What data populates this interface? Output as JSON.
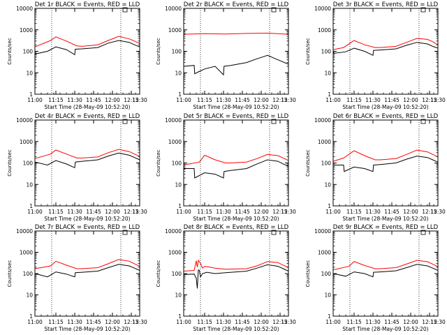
{
  "chart_data": [
    {
      "type": "line",
      "title": "Det 1r BLACK = Events, RED = LLD",
      "xlabel": "Start Time (28-May-09 10:52:20)",
      "ylabel": "Counts/sec",
      "ylog": true,
      "ylim": [
        1,
        10000
      ],
      "x_ticks": [
        "11:00",
        "11:15",
        "11:30",
        "11:45",
        "12:00",
        "12:15",
        "12:30"
      ],
      "y_ticks": [
        "1",
        "10",
        "100",
        "1000",
        "10000"
      ],
      "series": [
        {
          "name": "LLD",
          "color": "#ff0000",
          "x": [
            0,
            15,
            20,
            30,
            40,
            45,
            60,
            70,
            80,
            90,
            95,
            100
          ],
          "y": [
            160,
            320,
            470,
            300,
            180,
            170,
            200,
            320,
            500,
            380,
            300,
            230
          ]
        },
        {
          "name": "Events",
          "color": "#000000",
          "x": [
            0,
            0.5,
            12,
            20,
            30,
            38,
            38.5,
            45,
            60,
            70,
            80,
            90,
            95,
            100
          ],
          "y": [
            95,
            75,
            100,
            160,
            120,
            70,
            125,
            130,
            150,
            240,
            320,
            260,
            200,
            160
          ]
        }
      ]
    },
    {
      "type": "line",
      "title": "Det 2r BLACK = Events, RED = LLD",
      "xlabel": "Start Time (28-May-09 10:52:20)",
      "ylabel": "Counts/sec",
      "ylog": true,
      "ylim": [
        1,
        10000
      ],
      "x_ticks": [
        "11:00",
        "11:15",
        "11:30",
        "11:45",
        "12:00",
        "12:15",
        "12:30"
      ],
      "y_ticks": [
        "1",
        "10",
        "100",
        "1000",
        "10000"
      ],
      "series": [
        {
          "name": "LLD",
          "color": "#ff0000",
          "x": [
            0,
            20,
            40,
            60,
            80,
            90,
            100
          ],
          "y": [
            620,
            660,
            640,
            680,
            700,
            660,
            620
          ]
        },
        {
          "name": "Events",
          "color": "#000000",
          "x": [
            0,
            10,
            10.5,
            14,
            20,
            30,
            38,
            38.5,
            45,
            60,
            70,
            80,
            90,
            100
          ],
          "y": [
            20,
            22,
            9,
            11,
            15,
            20,
            8,
            20,
            22,
            30,
            45,
            65,
            40,
            25
          ]
        }
      ]
    },
    {
      "type": "line",
      "title": "Det 3r BLACK = Events, RED = LLD",
      "xlabel": "Start Time (28-May-09 10:52:20)",
      "ylabel": "Counts/sec",
      "ylog": true,
      "ylim": [
        1,
        10000
      ],
      "x_ticks": [
        "11:00",
        "11:15",
        "11:30",
        "11:45",
        "12:00",
        "12:15",
        "12:30"
      ],
      "y_ticks": [
        "1",
        "10",
        "100",
        "1000",
        "10000"
      ],
      "series": [
        {
          "name": "LLD",
          "color": "#ff0000",
          "x": [
            0,
            10,
            20,
            30,
            40,
            45,
            60,
            70,
            80,
            90,
            95,
            100
          ],
          "y": [
            120,
            150,
            320,
            200,
            150,
            150,
            170,
            260,
            400,
            360,
            280,
            200
          ]
        },
        {
          "name": "Events",
          "color": "#000000",
          "x": [
            0,
            0.5,
            12,
            20,
            30,
            38,
            38.5,
            45,
            60,
            70,
            80,
            90,
            95,
            100
          ],
          "y": [
            100,
            80,
            95,
            140,
            100,
            65,
            110,
            115,
            130,
            190,
            260,
            220,
            170,
            140
          ]
        }
      ]
    },
    {
      "type": "line",
      "title": "Det 4r BLACK = Events, RED = LLD",
      "xlabel": "Start Time (28-May-09 10:52:20)",
      "ylabel": "Counts/sec",
      "ylog": true,
      "ylim": [
        1,
        10000
      ],
      "x_ticks": [
        "11:00",
        "11:15",
        "11:30",
        "11:45",
        "12:00",
        "12:15",
        "12:30"
      ],
      "y_ticks": [
        "1",
        "10",
        "100",
        "1000",
        "10000"
      ],
      "series": [
        {
          "name": "LLD",
          "color": "#ff0000",
          "x": [
            0,
            15,
            20,
            30,
            40,
            45,
            60,
            70,
            80,
            90,
            95,
            100
          ],
          "y": [
            160,
            260,
            400,
            260,
            170,
            170,
            190,
            300,
            430,
            340,
            260,
            200
          ]
        },
        {
          "name": "Events",
          "color": "#000000",
          "x": [
            0,
            12,
            20,
            30,
            38,
            38.5,
            45,
            60,
            70,
            80,
            90,
            95,
            100
          ],
          "y": [
            110,
            80,
            130,
            90,
            60,
            110,
            120,
            140,
            210,
            290,
            230,
            180,
            140
          ]
        }
      ]
    },
    {
      "type": "line",
      "title": "Det 5r BLACK = Events, RED = LLD",
      "xlabel": "Start Time (28-May-09 10:52:20)",
      "ylabel": "Counts/sec",
      "ylog": true,
      "ylim": [
        1,
        10000
      ],
      "x_ticks": [
        "11:00",
        "11:15",
        "11:30",
        "11:45",
        "12:00",
        "12:15",
        "12:30"
      ],
      "y_ticks": [
        "1",
        "10",
        "100",
        "1000",
        "10000"
      ],
      "series": [
        {
          "name": "LLD",
          "color": "#ff0000",
          "x": [
            0,
            15,
            20,
            30,
            40,
            45,
            60,
            70,
            80,
            90,
            95,
            100
          ],
          "y": [
            80,
            110,
            230,
            140,
            100,
            100,
            110,
            160,
            250,
            220,
            170,
            130
          ]
        },
        {
          "name": "Events",
          "color": "#000000",
          "x": [
            0,
            10,
            10.5,
            20,
            30,
            38,
            38.5,
            45,
            60,
            70,
            80,
            90,
            95,
            100
          ],
          "y": [
            55,
            55,
            20,
            35,
            30,
            20,
            40,
            45,
            55,
            90,
            140,
            120,
            90,
            70
          ]
        }
      ]
    },
    {
      "type": "line",
      "title": "Det 6r BLACK = Events, RED = LLD",
      "xlabel": "Start Time (28-May-09 10:52:20)",
      "ylabel": "Counts/sec",
      "ylog": true,
      "ylim": [
        1,
        10000
      ],
      "x_ticks": [
        "11:00",
        "11:15",
        "11:30",
        "11:45",
        "12:00",
        "12:15",
        "12:30"
      ],
      "y_ticks": [
        "1",
        "10",
        "100",
        "1000",
        "10000"
      ],
      "series": [
        {
          "name": "LLD",
          "color": "#ff0000",
          "x": [
            0,
            10,
            20,
            30,
            40,
            45,
            60,
            70,
            80,
            90,
            95,
            100
          ],
          "y": [
            120,
            170,
            370,
            220,
            140,
            140,
            160,
            250,
            400,
            330,
            250,
            190
          ]
        },
        {
          "name": "Events",
          "color": "#000000",
          "x": [
            0,
            10,
            10.5,
            20,
            30,
            38,
            38.5,
            45,
            60,
            70,
            80,
            90,
            95,
            100
          ],
          "y": [
            80,
            80,
            40,
            65,
            55,
            40,
            80,
            85,
            100,
            150,
            210,
            180,
            140,
            110
          ]
        }
      ]
    },
    {
      "type": "line",
      "title": "Det 7r BLACK = Events, RED = LLD",
      "xlabel": "Start Time (28-May-09 10:52:20)",
      "ylabel": "Counts/sec",
      "ylog": true,
      "ylim": [
        1,
        10000
      ],
      "x_ticks": [
        "11:00",
        "11:15",
        "11:30",
        "11:45",
        "12:00",
        "12:15",
        "12:30"
      ],
      "y_ticks": [
        "1",
        "10",
        "100",
        "1000",
        "10000"
      ],
      "series": [
        {
          "name": "LLD",
          "color": "#ff0000",
          "x": [
            0,
            15,
            20,
            30,
            40,
            45,
            60,
            70,
            80,
            90,
            95,
            100
          ],
          "y": [
            170,
            230,
            380,
            250,
            170,
            170,
            190,
            290,
            460,
            380,
            290,
            220
          ]
        },
        {
          "name": "Events",
          "color": "#000000",
          "x": [
            0,
            12,
            20,
            30,
            38,
            38.5,
            45,
            60,
            70,
            80,
            90,
            95,
            100
          ],
          "y": [
            100,
            70,
            120,
            95,
            70,
            110,
            115,
            130,
            190,
            270,
            230,
            180,
            140
          ]
        }
      ]
    },
    {
      "type": "line",
      "title": "Det 8r BLACK = Events, RED = LLD",
      "xlabel": "Start Time (28-May-09 10:52:20)",
      "ylabel": "Counts/sec",
      "ylog": true,
      "ylim": [
        1,
        10000
      ],
      "x_ticks": [
        "11:00",
        "11:15",
        "11:30",
        "11:45",
        "12:00",
        "12:15",
        "12:30"
      ],
      "y_ticks": [
        "1",
        "10",
        "100",
        "1000",
        "10000"
      ],
      "series": [
        {
          "name": "LLD",
          "color": "#ff0000",
          "x": [
            0,
            10,
            12,
            13,
            14,
            16,
            18,
            20,
            25,
            30,
            40,
            60,
            70,
            80,
            90,
            95,
            100
          ],
          "y": [
            130,
            140,
            400,
            200,
            420,
            300,
            180,
            220,
            200,
            180,
            160,
            170,
            230,
            370,
            330,
            250,
            190
          ]
        },
        {
          "name": "Events",
          "color": "#000000",
          "x": [
            0,
            10,
            12,
            13,
            14,
            15,
            16,
            18,
            22,
            30,
            40,
            60,
            70,
            80,
            90,
            95,
            100
          ],
          "y": [
            90,
            95,
            60,
            20,
            150,
            140,
            70,
            100,
            115,
            100,
            110,
            130,
            180,
            260,
            220,
            170,
            130
          ]
        }
      ]
    },
    {
      "type": "line",
      "title": "Det 9r BLACK = Events, RED = LLD",
      "xlabel": "Start Time (28-May-09 10:52:20)",
      "ylabel": "Counts/sec",
      "ylog": true,
      "ylim": [
        1,
        10000
      ],
      "x_ticks": [
        "11:00",
        "11:15",
        "11:30",
        "11:45",
        "12:00",
        "12:15",
        "12:30"
      ],
      "y_ticks": [
        "1",
        "10",
        "100",
        "1000",
        "10000"
      ],
      "series": [
        {
          "name": "LLD",
          "color": "#ff0000",
          "x": [
            0,
            15,
            20,
            30,
            40,
            45,
            60,
            70,
            80,
            90,
            95,
            100
          ],
          "y": [
            150,
            220,
            370,
            240,
            170,
            170,
            190,
            280,
            420,
            360,
            280,
            210
          ]
        },
        {
          "name": "Events",
          "color": "#000000",
          "x": [
            0,
            12,
            20,
            30,
            38,
            38.5,
            45,
            60,
            70,
            80,
            90,
            95,
            100
          ],
          "y": [
            100,
            75,
            120,
            100,
            70,
            115,
            120,
            135,
            190,
            270,
            230,
            180,
            140
          ]
        }
      ]
    }
  ]
}
